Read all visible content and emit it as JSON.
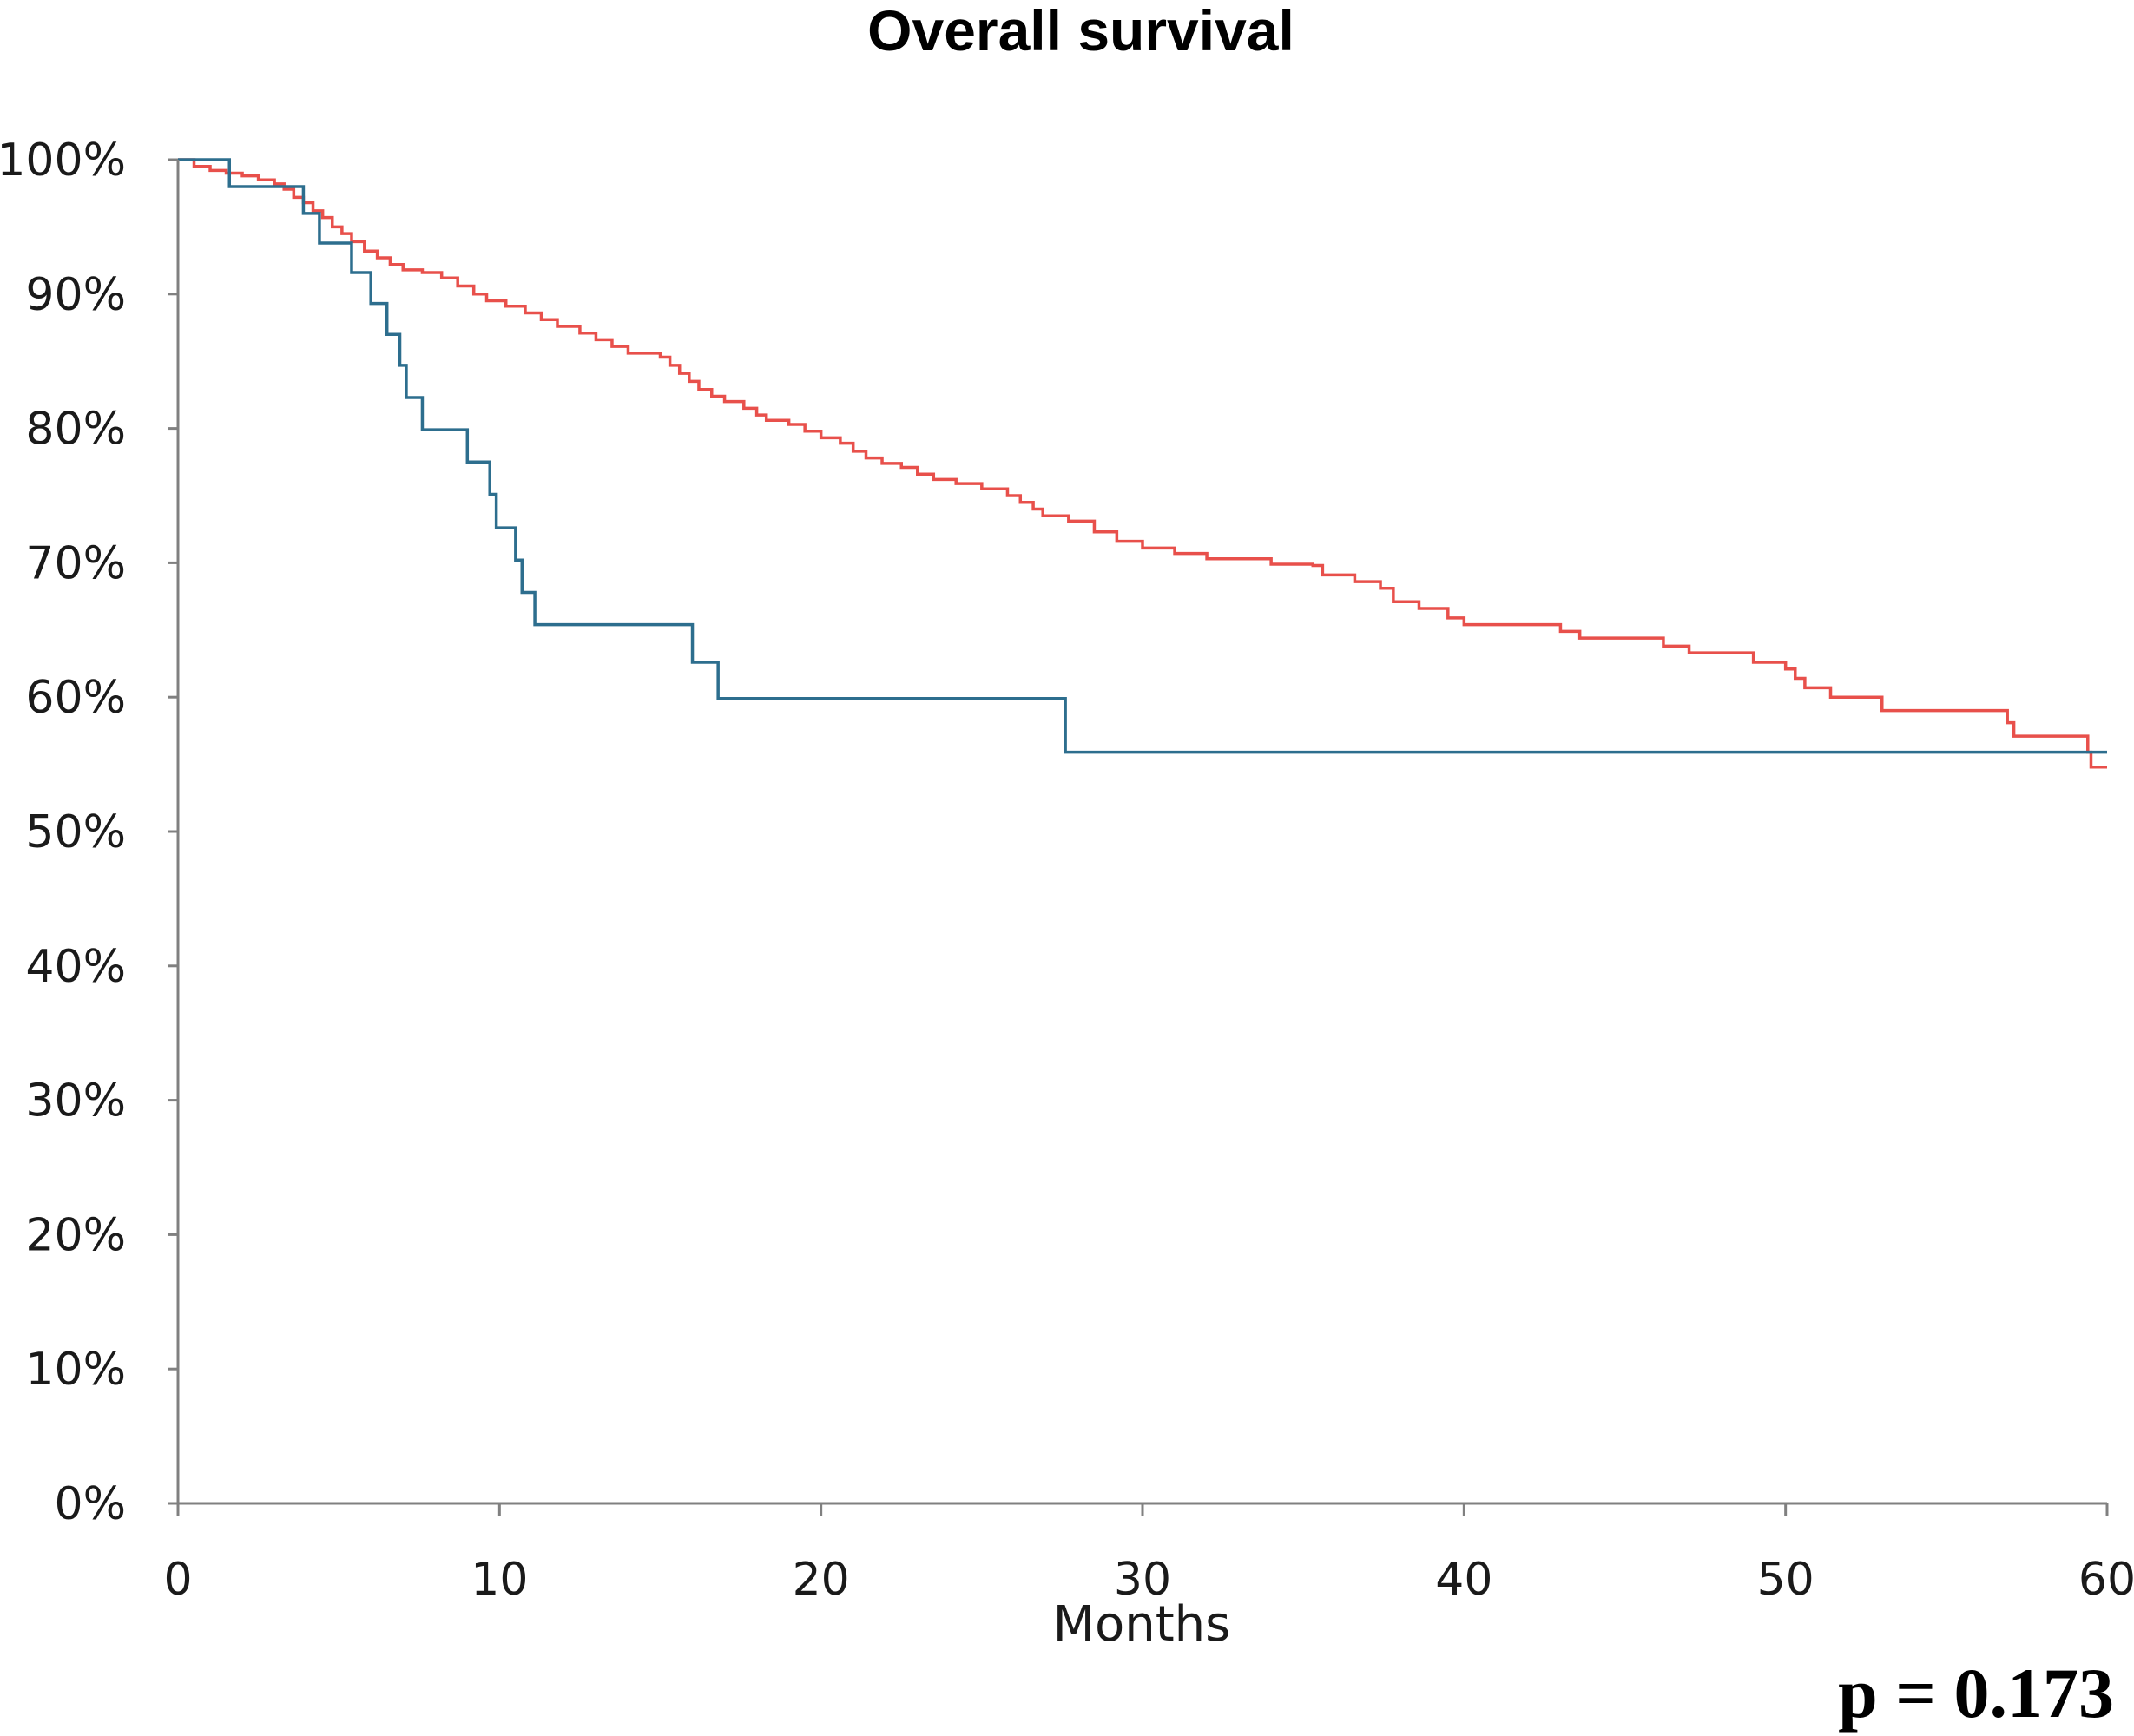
{
  "chart_data": {
    "type": "line",
    "title": "Overall survival",
    "xlabel": "Months",
    "ylabel": "",
    "xlim": [
      0,
      60
    ],
    "ylim": [
      0,
      100
    ],
    "x_ticks": [
      0,
      10,
      20,
      30,
      40,
      50,
      60
    ],
    "x_tick_labels": [
      "0",
      "10",
      "20",
      "30",
      "40",
      "50",
      "60"
    ],
    "y_ticks": [
      0,
      10,
      20,
      30,
      40,
      50,
      60,
      70,
      80,
      90,
      100
    ],
    "y_tick_labels": [
      "0%",
      "10%",
      "20%",
      "30%",
      "40%",
      "50%",
      "60%",
      "70%",
      "80%",
      "90%",
      "100%"
    ],
    "grid": false,
    "legend": "none",
    "annotation": "p = 0.173",
    "step": true,
    "series": [
      {
        "color": "#e8504b",
        "points": [
          [
            0,
            100
          ],
          [
            0.5,
            99.5
          ],
          [
            1,
            99.2
          ],
          [
            1.5,
            99
          ],
          [
            2,
            98.8
          ],
          [
            2.5,
            98.5
          ],
          [
            3,
            98.2
          ],
          [
            3.3,
            97.8
          ],
          [
            3.6,
            97.2
          ],
          [
            3.9,
            96.8
          ],
          [
            4.2,
            96.2
          ],
          [
            4.5,
            95.7
          ],
          [
            4.8,
            95
          ],
          [
            5.1,
            94.5
          ],
          [
            5.4,
            93.9
          ],
          [
            5.8,
            93.2
          ],
          [
            6.2,
            92.7
          ],
          [
            6.6,
            92.2
          ],
          [
            7,
            91.8
          ],
          [
            7.6,
            91.6
          ],
          [
            8.2,
            91.2
          ],
          [
            8.7,
            90.6
          ],
          [
            9.2,
            90
          ],
          [
            9.6,
            89.5
          ],
          [
            10.2,
            89.1
          ],
          [
            10.8,
            88.6
          ],
          [
            11.3,
            88.1
          ],
          [
            11.8,
            87.6
          ],
          [
            12.5,
            87.1
          ],
          [
            13,
            86.6
          ],
          [
            13.5,
            86.1
          ],
          [
            14,
            85.6
          ],
          [
            15,
            85.3
          ],
          [
            15.3,
            84.7
          ],
          [
            15.6,
            84.1
          ],
          [
            15.9,
            83.5
          ],
          [
            16.2,
            82.9
          ],
          [
            16.6,
            82.4
          ],
          [
            17,
            82
          ],
          [
            17.6,
            81.5
          ],
          [
            18,
            81
          ],
          [
            18.3,
            80.6
          ],
          [
            19,
            80.3
          ],
          [
            19.5,
            79.8
          ],
          [
            20,
            79.3
          ],
          [
            20.6,
            78.9
          ],
          [
            21,
            78.3
          ],
          [
            21.4,
            77.8
          ],
          [
            21.9,
            77.4
          ],
          [
            22.5,
            77.1
          ],
          [
            23,
            76.6
          ],
          [
            23.5,
            76.2
          ],
          [
            24.2,
            75.9
          ],
          [
            25,
            75.5
          ],
          [
            25.8,
            75
          ],
          [
            26.2,
            74.5
          ],
          [
            26.6,
            74
          ],
          [
            26.9,
            73.5
          ],
          [
            27.7,
            73.1
          ],
          [
            28.5,
            72.3
          ],
          [
            29.2,
            71.6
          ],
          [
            30,
            71.1
          ],
          [
            31,
            70.7
          ],
          [
            32,
            70.3
          ],
          [
            34,
            69.9
          ],
          [
            35.3,
            69.8
          ],
          [
            35.6,
            69.1
          ],
          [
            36.6,
            68.6
          ],
          [
            37.4,
            68.1
          ],
          [
            37.8,
            67.1
          ],
          [
            38.6,
            66.6
          ],
          [
            39.5,
            65.9
          ],
          [
            40,
            65.4
          ],
          [
            41.4,
            65.4
          ],
          [
            43,
            64.9
          ],
          [
            43.6,
            64.4
          ],
          [
            44.5,
            64.4
          ],
          [
            46.2,
            63.8
          ],
          [
            47,
            63.3
          ],
          [
            49,
            62.6
          ],
          [
            50,
            62.1
          ],
          [
            50.3,
            61.4
          ],
          [
            50.6,
            60.7
          ],
          [
            51.4,
            60
          ],
          [
            53,
            59
          ],
          [
            56.9,
            58.1
          ],
          [
            57.1,
            57.1
          ],
          [
            59.4,
            55.9
          ],
          [
            59.5,
            54.8
          ],
          [
            60,
            54.8
          ]
        ]
      },
      {
        "color": "#2d6e8e",
        "points": [
          [
            0,
            100
          ],
          [
            1.6,
            98
          ],
          [
            3.9,
            96
          ],
          [
            4.4,
            93.8
          ],
          [
            5.4,
            91.6
          ],
          [
            6,
            89.3
          ],
          [
            6.5,
            87
          ],
          [
            6.9,
            84.7
          ],
          [
            7.1,
            82.3
          ],
          [
            7.6,
            79.9
          ],
          [
            9,
            77.5
          ],
          [
            9.7,
            75.1
          ],
          [
            9.9,
            72.6
          ],
          [
            10.5,
            70.2
          ],
          [
            10.7,
            67.8
          ],
          [
            11.1,
            65.4
          ],
          [
            16,
            62.6
          ],
          [
            16.8,
            59.9
          ],
          [
            27.6,
            55.9
          ],
          [
            60,
            55.9
          ]
        ]
      }
    ]
  }
}
